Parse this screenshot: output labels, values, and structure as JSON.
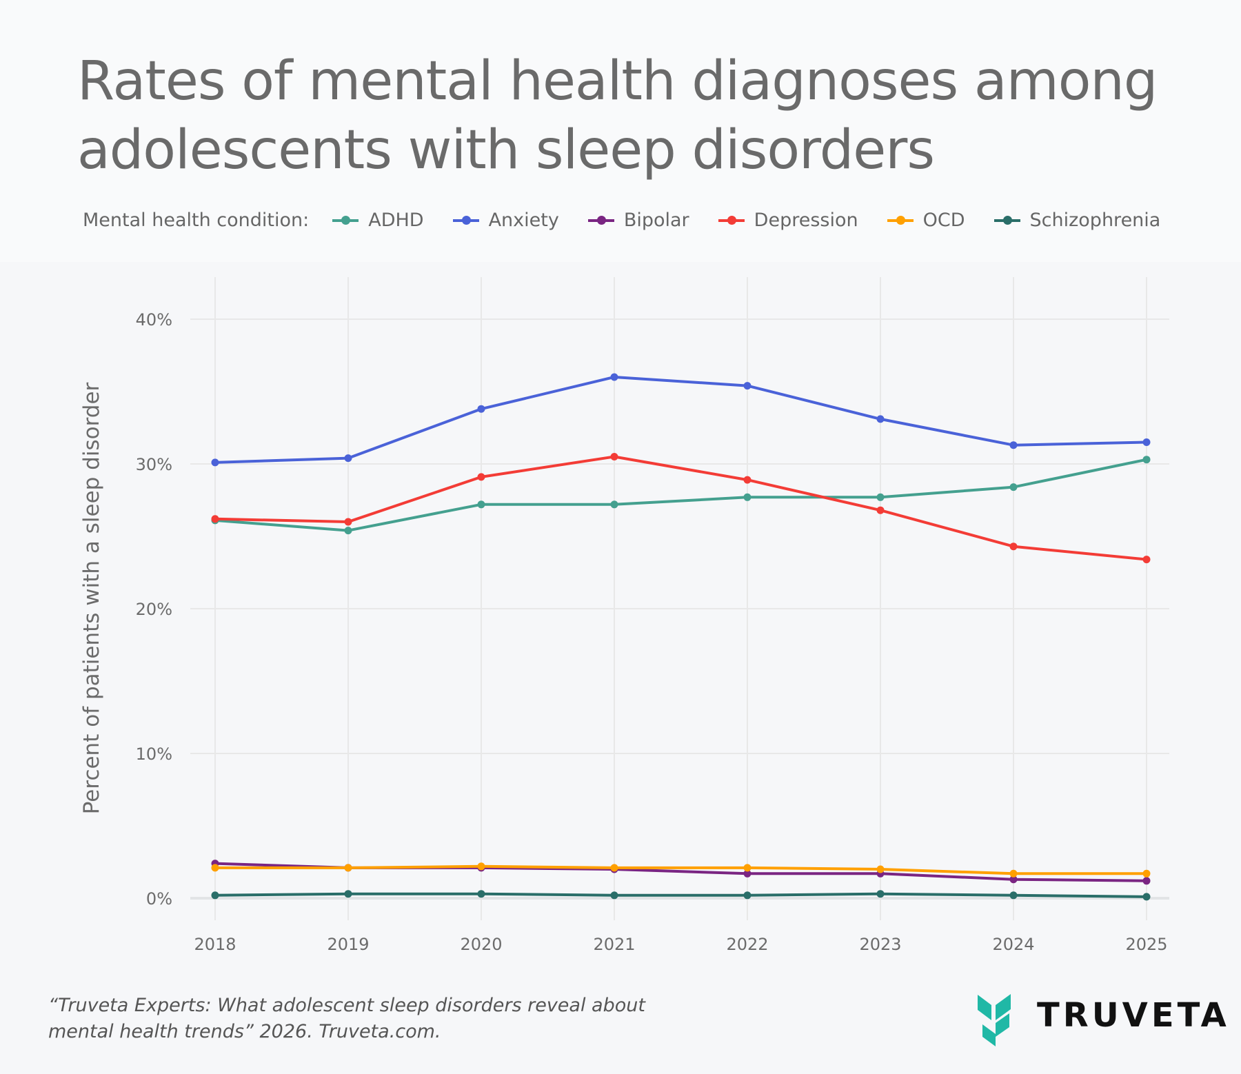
{
  "chart_data": {
    "type": "line",
    "title": "Rates of mental health diagnoses among adolescents with sleep disorders",
    "xlabel": "",
    "ylabel": "Percent of patients with a sleep disorder",
    "legend_title": "Mental health condition:",
    "legend_position": "top",
    "grid": true,
    "x": [
      "2018",
      "2019",
      "2020",
      "2021",
      "2022",
      "2023",
      "2024",
      "2025"
    ],
    "ylim": [
      0,
      42
    ],
    "yticks": [
      0,
      10,
      20,
      30,
      40
    ],
    "ytick_labels": [
      "0%",
      "10%",
      "20%",
      "30%",
      "40%"
    ],
    "series": [
      {
        "name": "ADHD",
        "color": "#44a08f",
        "values": [
          26.1,
          25.4,
          27.2,
          27.2,
          27.7,
          27.7,
          28.4,
          30.3
        ]
      },
      {
        "name": "Anxiety",
        "color": "#4a62d8",
        "values": [
          30.1,
          30.4,
          33.8,
          36.0,
          35.4,
          33.1,
          31.3,
          31.5
        ]
      },
      {
        "name": "Bipolar",
        "color": "#7a2582",
        "values": [
          2.4,
          2.1,
          2.1,
          2.0,
          1.7,
          1.7,
          1.3,
          1.2
        ]
      },
      {
        "name": "Depression",
        "color": "#f33c36",
        "values": [
          26.2,
          26.0,
          29.1,
          30.5,
          28.9,
          26.8,
          24.3,
          23.4
        ]
      },
      {
        "name": "OCD",
        "color": "#ffa000",
        "values": [
          2.1,
          2.1,
          2.2,
          2.1,
          2.1,
          2.0,
          1.7,
          1.7
        ]
      },
      {
        "name": "Schizophrenia",
        "color": "#2a6e69",
        "values": [
          0.2,
          0.3,
          0.3,
          0.2,
          0.2,
          0.3,
          0.2,
          0.1
        ]
      }
    ]
  },
  "title_lines": [
    "Rates of mental health diagnoses among",
    "adolescents with sleep disorders"
  ],
  "footer": {
    "line1": "“Truveta Experts: What adolescent sleep disorders reveal about",
    "line2": "mental health trends” 2026. Truveta.com."
  },
  "logo": {
    "text": "TRUVETA",
    "color": "#20b8a6"
  }
}
